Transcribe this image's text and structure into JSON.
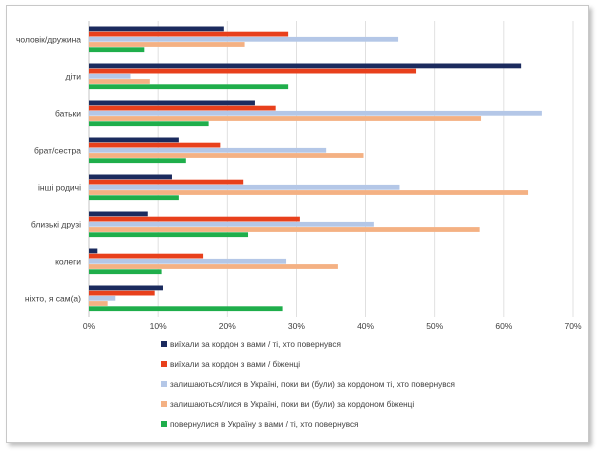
{
  "chart_data": {
    "type": "bar",
    "orientation": "horizontal",
    "categories": [
      "чоловік/дружина",
      "діти",
      "батьки",
      "брат/сестра",
      "інші родичі",
      "близькі друзі",
      "колеги",
      "ніхто, я сам(а)"
    ],
    "xlim": [
      0,
      0.7
    ],
    "xticks": [
      "0%",
      "10%",
      "20%",
      "30%",
      "40%",
      "50%",
      "60%",
      "70%"
    ],
    "grid": true,
    "legend_position": "bottom",
    "colors": [
      "#1b2b5e",
      "#e8401c",
      "#b4c7e7",
      "#f4b183",
      "#1fae4b"
    ],
    "series": [
      {
        "name": "виїхали за кордон з вами / ті, хто повернувся",
        "values": [
          0.195,
          0.625,
          0.24,
          0.13,
          0.12,
          0.085,
          0.012,
          0.107
        ]
      },
      {
        "name": "виїхали за кордон з вами / біженці",
        "values": [
          0.288,
          0.473,
          0.27,
          0.19,
          0.223,
          0.305,
          0.165,
          0.095
        ]
      },
      {
        "name": "залишаються/лися в Україні, поки ви (були) за кордоном ті, хто повернувся",
        "values": [
          0.447,
          0.06,
          0.655,
          0.343,
          0.449,
          0.412,
          0.285,
          0.038
        ]
      },
      {
        "name": "залишаються/лися в Україні, поки ви (були) за кордоном біженці",
        "values": [
          0.225,
          0.088,
          0.567,
          0.397,
          0.635,
          0.565,
          0.36,
          0.027
        ]
      },
      {
        "name": "повернулися в Україну з вами / ті, хто повернувся",
        "values": [
          0.08,
          0.288,
          0.173,
          0.14,
          0.13,
          0.23,
          0.105,
          0.28
        ]
      }
    ]
  }
}
